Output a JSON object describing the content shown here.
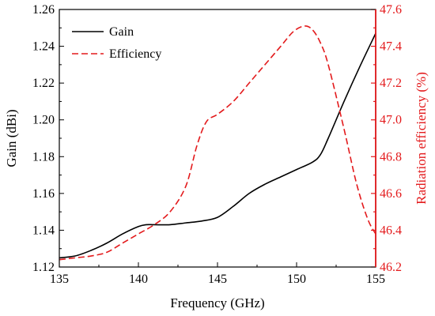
{
  "chart_data": {
    "type": "line",
    "title": "",
    "xlabel": "Frequency (GHz)",
    "ylabel_left": "Gain (dBi)",
    "ylabel_right": "Radiation efficiency (%)",
    "xlim": [
      135,
      155
    ],
    "ylim_left": [
      1.12,
      1.26
    ],
    "ylim_right": [
      46.2,
      47.6
    ],
    "x_ticks": [
      "135",
      "140",
      "145",
      "150",
      "155"
    ],
    "y_ticks_left": [
      "1.12",
      "1.14",
      "1.16",
      "1.18",
      "1.20",
      "1.22",
      "1.24",
      "1.26"
    ],
    "y_ticks_right": [
      "46.2",
      "46.4",
      "46.6",
      "46.8",
      "47.0",
      "47.2",
      "47.4",
      "47.6"
    ],
    "grid": false,
    "legend_position": "top-left",
    "series": [
      {
        "name": "Gain",
        "axis": "left",
        "color": "#000000",
        "style": "solid",
        "x": [
          135,
          136,
          137,
          138,
          139,
          140,
          140.5,
          141,
          142,
          143,
          144,
          145,
          146,
          147,
          148,
          149,
          150,
          151,
          151.5,
          152,
          153,
          154,
          155
        ],
        "values": [
          1.125,
          1.126,
          1.129,
          1.133,
          1.138,
          1.142,
          1.143,
          1.143,
          1.143,
          1.144,
          1.145,
          1.147,
          1.153,
          1.16,
          1.165,
          1.169,
          1.173,
          1.177,
          1.181,
          1.19,
          1.21,
          1.229,
          1.247
        ]
      },
      {
        "name": "Efficiency",
        "axis": "right",
        "color": "#e31a1c",
        "style": "dashed",
        "x": [
          135,
          136,
          137,
          138,
          139,
          140,
          141,
          142,
          143,
          143.7,
          144.3,
          145,
          146,
          147,
          148,
          149,
          149.8,
          150.5,
          151,
          151.5,
          152,
          153,
          153.8,
          154.5,
          155
        ],
        "values": [
          46.24,
          46.25,
          46.26,
          46.28,
          46.33,
          46.38,
          46.43,
          46.5,
          46.64,
          46.86,
          46.99,
          47.03,
          47.1,
          47.2,
          47.3,
          47.4,
          47.48,
          47.51,
          47.49,
          47.42,
          47.3,
          46.95,
          46.65,
          46.46,
          46.38
        ]
      }
    ]
  }
}
